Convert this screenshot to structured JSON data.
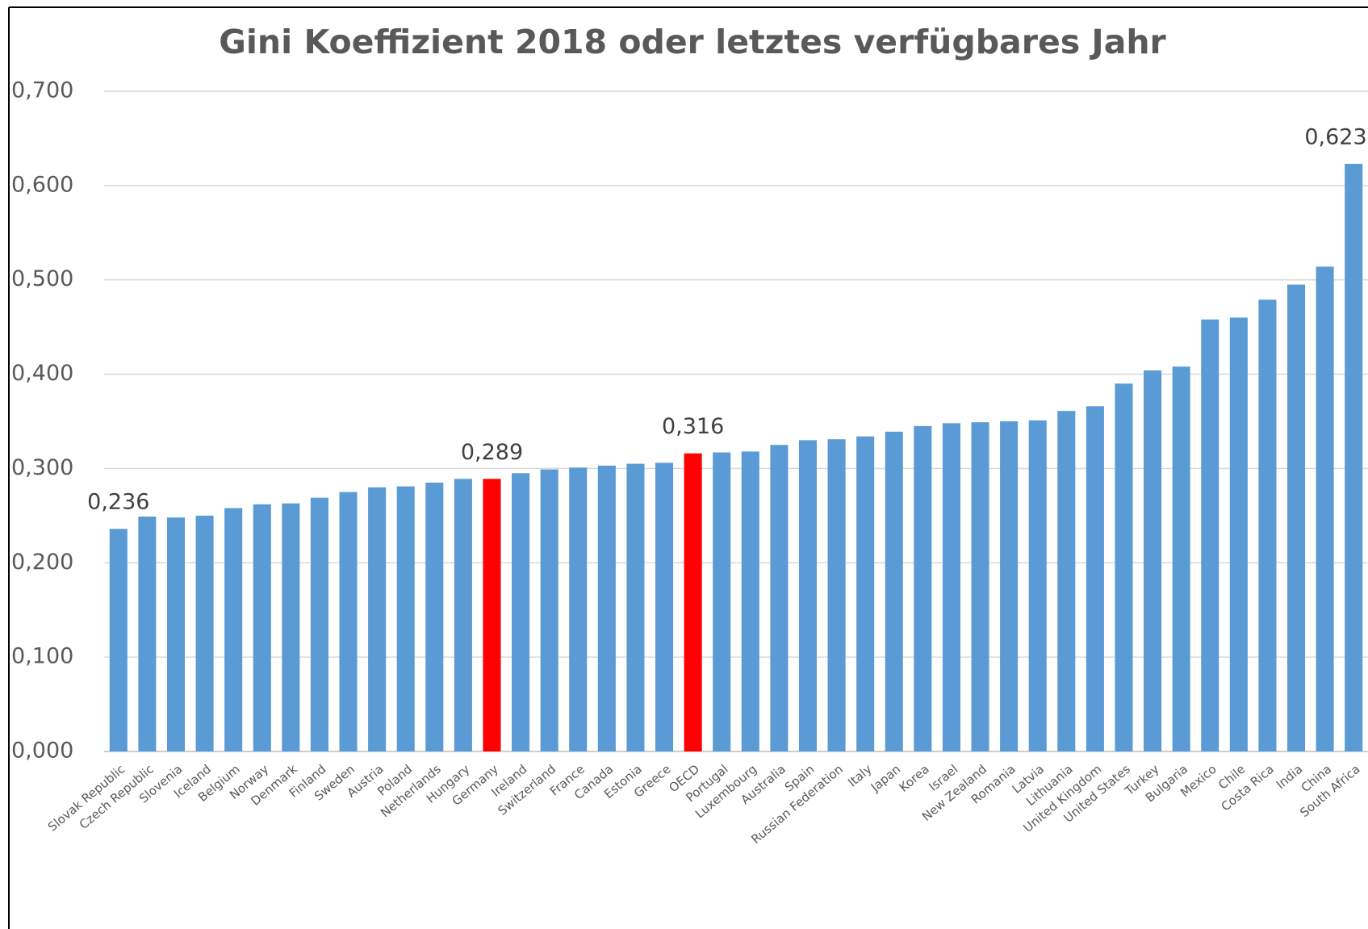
{
  "chart_data": {
    "type": "bar",
    "title": "Gini Koeffizient 2018 oder letztes verfügbares Jahr",
    "categories": [
      "Slovak Republic",
      "Czech Republic",
      "Slovenia",
      "Iceland",
      "Belgium",
      "Norway",
      "Denmark",
      "Finland",
      "Sweden",
      "Austria",
      "Poland",
      "Netherlands",
      "Hungary",
      "Germany",
      "Ireland",
      "Switzerland",
      "France",
      "Canada",
      "Estonia",
      "Greece",
      "OECD",
      "Portugal",
      "Luxembourg",
      "Australia",
      "Spain",
      "Russian Federation",
      "Italy",
      "Japan",
      "Korea",
      "Israel",
      "New Zealand",
      "Romania",
      "Latvia",
      "Lithuania",
      "United Kingdom",
      "United States",
      "Turkey",
      "Bulgaria",
      "Mexico",
      "Chile",
      "Costa Rica",
      "India",
      "China",
      "South Africa"
    ],
    "values": [
      0.236,
      0.249,
      0.248,
      0.25,
      0.258,
      0.262,
      0.263,
      0.269,
      0.275,
      0.28,
      0.281,
      0.285,
      0.289,
      0.289,
      0.295,
      0.299,
      0.301,
      0.303,
      0.305,
      0.306,
      0.316,
      0.317,
      0.318,
      0.325,
      0.33,
      0.331,
      0.334,
      0.339,
      0.345,
      0.348,
      0.349,
      0.35,
      0.351,
      0.361,
      0.366,
      0.39,
      0.404,
      0.408,
      0.458,
      0.46,
      0.479,
      0.495,
      0.514,
      0.623
    ],
    "value_labels": [
      "0,236",
      null,
      null,
      null,
      null,
      null,
      null,
      null,
      null,
      null,
      null,
      null,
      null,
      "0,289",
      null,
      null,
      null,
      null,
      null,
      null,
      "0,316",
      null,
      null,
      null,
      null,
      null,
      null,
      null,
      null,
      null,
      null,
      null,
      null,
      null,
      null,
      null,
      null,
      null,
      null,
      null,
      null,
      null,
      null,
      "0,623"
    ],
    "color": "#5b9bd5",
    "highlight": {
      "color": "#ff0000",
      "categories": [
        "Germany",
        "OECD"
      ]
    },
    "ylim": [
      0,
      0.7
    ],
    "yticks": [
      {
        "value": 0,
        "label": "0,000"
      },
      {
        "value": 0.1,
        "label": "0,100"
      },
      {
        "value": 0.2,
        "label": "0,200"
      },
      {
        "value": 0.3,
        "label": "0,300"
      },
      {
        "value": 0.4,
        "label": "0,400"
      },
      {
        "value": 0.5,
        "label": "0,500"
      },
      {
        "value": 0.6,
        "label": "0,600"
      },
      {
        "value": 0.7,
        "label": "0,700"
      }
    ],
    "grid": true
  }
}
